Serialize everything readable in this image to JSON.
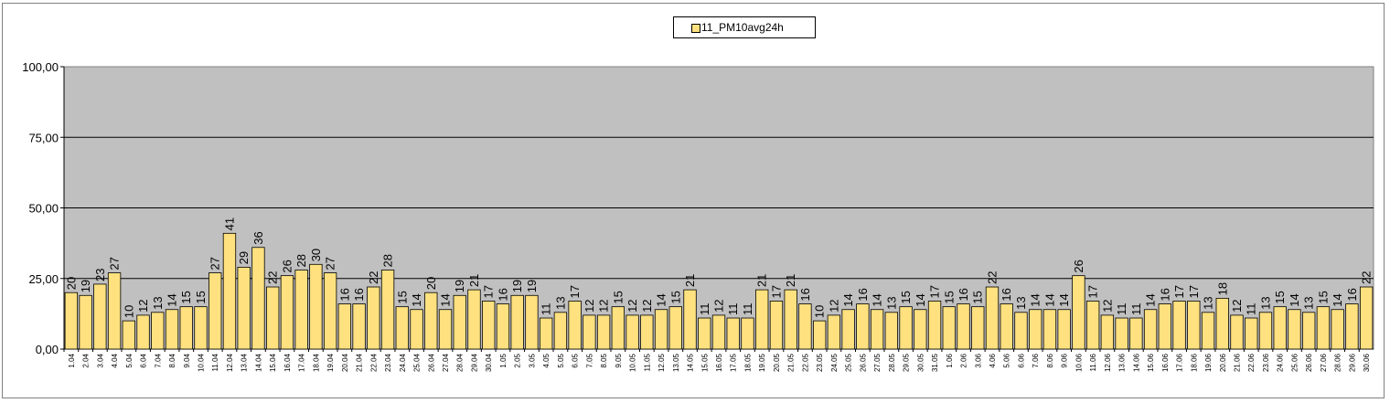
{
  "chart_data": {
    "type": "bar",
    "legend": {
      "label": "11_PM10avg24h",
      "placement": "top-center"
    },
    "ylim": [
      0,
      100
    ],
    "yticks": [
      "0,00",
      "25,00",
      "50,00",
      "75,00",
      "100,00"
    ],
    "categories": [
      "1.04",
      "2.04",
      "3.04",
      "4.04",
      "5.04",
      "6.04",
      "7.04",
      "8.04",
      "9.04",
      "10.04",
      "11.04",
      "12.04",
      "13.04",
      "14.04",
      "15.04",
      "16.04",
      "17.04",
      "18.04",
      "19.04",
      "20.04",
      "21.04",
      "22.04",
      "23.04",
      "24.04",
      "25.04",
      "26.04",
      "27.04",
      "28.04",
      "29.04",
      "30.04",
      "1.05",
      "2.05",
      "3.05",
      "4.05",
      "5.05",
      "6.05",
      "7.05",
      "8.05",
      "9.05",
      "10.05",
      "11.05",
      "12.05",
      "13.05",
      "14.05",
      "15.05",
      "16.05",
      "17.05",
      "18.05",
      "19.05",
      "20.05",
      "21.05",
      "22.05",
      "23.05",
      "24.05",
      "25.05",
      "26.05",
      "27.05",
      "28.05",
      "29.05",
      "30.05",
      "31.05",
      "1.06",
      "2.06",
      "3.06",
      "4.06",
      "5.06",
      "6.06",
      "7.06",
      "8.06",
      "9.06",
      "10.06",
      "11.06",
      "12.06",
      "13.06",
      "14.06",
      "15.06",
      "16.06",
      "17.06",
      "18.06",
      "19.06",
      "20.06",
      "21.06",
      "22.06",
      "23.06",
      "24.06",
      "25.06",
      "26.06",
      "27.06",
      "28.06",
      "29.06",
      "30.06"
    ],
    "values": [
      20,
      19,
      23,
      27,
      10,
      12,
      13,
      14,
      15,
      15,
      27,
      41,
      29,
      36,
      22,
      26,
      28,
      30,
      27,
      16,
      16,
      22,
      28,
      15,
      14,
      20,
      14,
      19,
      21,
      17,
      16,
      19,
      19,
      11,
      13,
      17,
      12,
      12,
      15,
      12,
      12,
      14,
      15,
      21,
      11,
      12,
      11,
      11,
      21,
      17,
      21,
      16,
      10,
      12,
      14,
      16,
      14,
      13,
      15,
      14,
      17,
      15,
      16,
      15,
      22,
      16,
      13,
      14,
      14,
      14,
      26,
      17,
      12,
      11,
      11,
      14,
      16,
      17,
      17,
      13,
      18,
      12,
      11,
      13,
      15,
      14,
      13,
      15,
      14,
      16,
      22
    ],
    "colors": {
      "bar": "#ffe17f",
      "bar_stroke": "#000000",
      "plot_bg": "#c0c0c0"
    },
    "grid": true
  }
}
